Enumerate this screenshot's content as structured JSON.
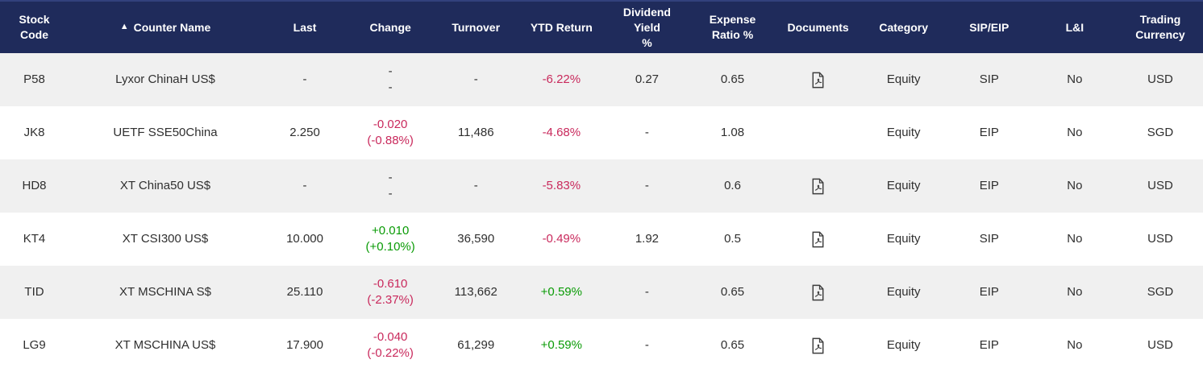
{
  "table": {
    "sort_icon": "▲",
    "columns": [
      {
        "key": "stock_code",
        "label": "Stock\nCode"
      },
      {
        "key": "counter_name",
        "label": "Counter Name",
        "sorted": "ascending"
      },
      {
        "key": "last",
        "label": "Last"
      },
      {
        "key": "change",
        "label": "Change"
      },
      {
        "key": "turnover",
        "label": "Turnover"
      },
      {
        "key": "ytd_return",
        "label": "YTD Return"
      },
      {
        "key": "dividend_yield",
        "label": "Dividend Yield\n%"
      },
      {
        "key": "expense_ratio",
        "label": "Expense\nRatio %"
      },
      {
        "key": "documents",
        "label": "Documents"
      },
      {
        "key": "category",
        "label": "Category"
      },
      {
        "key": "sip_eip",
        "label": "SIP/EIP"
      },
      {
        "key": "l_and_i",
        "label": "L&I"
      },
      {
        "key": "trading_currency",
        "label": "Trading\nCurrency"
      }
    ],
    "rows": [
      {
        "stock_code": "P58",
        "counter_name": "Lyxor ChinaH US$",
        "last": "-",
        "change": {
          "value": "-",
          "pct": "-",
          "dir": "none"
        },
        "turnover": "-",
        "ytd_return": {
          "value": "-6.22%",
          "dir": "down"
        },
        "dividend_yield": "0.27",
        "expense_ratio": "0.65",
        "has_document": true,
        "category": "Equity",
        "sip_eip": "SIP",
        "l_and_i": "No",
        "trading_currency": "USD"
      },
      {
        "stock_code": "JK8",
        "counter_name": "UETF SSE50China",
        "last": "2.250",
        "change": {
          "value": "-0.020",
          "pct": "(-0.88%)",
          "dir": "down"
        },
        "turnover": "11,486",
        "ytd_return": {
          "value": "-4.68%",
          "dir": "down"
        },
        "dividend_yield": "-",
        "expense_ratio": "1.08",
        "has_document": false,
        "category": "Equity",
        "sip_eip": "EIP",
        "l_and_i": "No",
        "trading_currency": "SGD"
      },
      {
        "stock_code": "HD8",
        "counter_name": "XT China50 US$",
        "last": "-",
        "change": {
          "value": "-",
          "pct": "-",
          "dir": "none"
        },
        "turnover": "-",
        "ytd_return": {
          "value": "-5.83%",
          "dir": "down"
        },
        "dividend_yield": "-",
        "expense_ratio": "0.6",
        "has_document": true,
        "category": "Equity",
        "sip_eip": "EIP",
        "l_and_i": "No",
        "trading_currency": "USD"
      },
      {
        "stock_code": "KT4",
        "counter_name": "XT CSI300 US$",
        "last": "10.000",
        "change": {
          "value": "+0.010",
          "pct": "(+0.10%)",
          "dir": "up"
        },
        "turnover": "36,590",
        "ytd_return": {
          "value": "-0.49%",
          "dir": "down"
        },
        "dividend_yield": "1.92",
        "expense_ratio": "0.5",
        "has_document": true,
        "category": "Equity",
        "sip_eip": "SIP",
        "l_and_i": "No",
        "trading_currency": "USD"
      },
      {
        "stock_code": "TID",
        "counter_name": "XT MSCHINA S$",
        "last": "25.110",
        "change": {
          "value": "-0.610",
          "pct": "(-2.37%)",
          "dir": "down"
        },
        "turnover": "113,662",
        "ytd_return": {
          "value": "+0.59%",
          "dir": "up"
        },
        "dividend_yield": "-",
        "expense_ratio": "0.65",
        "has_document": true,
        "category": "Equity",
        "sip_eip": "EIP",
        "l_and_i": "No",
        "trading_currency": "SGD"
      },
      {
        "stock_code": "LG9",
        "counter_name": "XT MSCHINA US$",
        "last": "17.900",
        "change": {
          "value": "-0.040",
          "pct": "(-0.22%)",
          "dir": "down"
        },
        "turnover": "61,299",
        "ytd_return": {
          "value": "+0.59%",
          "dir": "up"
        },
        "dividend_yield": "-",
        "expense_ratio": "0.65",
        "has_document": true,
        "category": "Equity",
        "sip_eip": "EIP",
        "l_and_i": "No",
        "trading_currency": "USD"
      }
    ]
  },
  "icons": {
    "documents": "pdf-file-icon",
    "sort": "sort-ascending-icon"
  },
  "colors": {
    "header_bg": "#1f2b5b",
    "header_text": "#ffffff",
    "negative": "#c9295c",
    "positive": "#0a9b06",
    "row_alt_bg": "#f0f0f0",
    "row_bg": "#ffffff",
    "body_text": "#2f2f2f"
  }
}
